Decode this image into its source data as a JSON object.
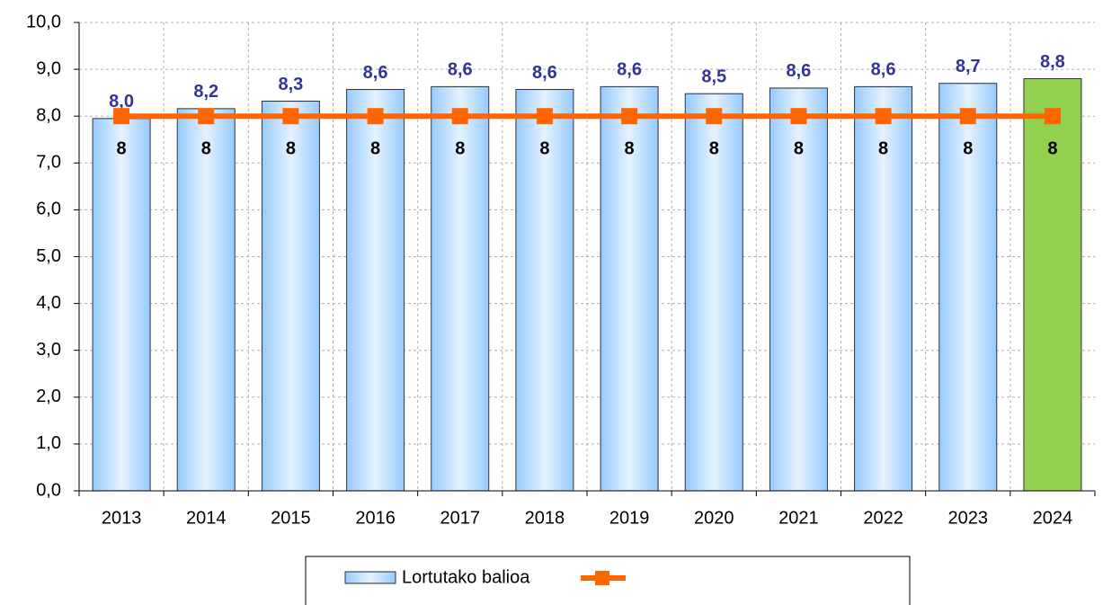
{
  "chart_data": {
    "type": "bar",
    "categories": [
      "2013",
      "2014",
      "2015",
      "2016",
      "2017",
      "2018",
      "2019",
      "2020",
      "2021",
      "2022",
      "2023",
      "2024"
    ],
    "series": [
      {
        "name": "Lortutako balioa",
        "type": "bar",
        "color": "#99ccff",
        "colors": [
          "#99ccff",
          "#99ccff",
          "#99ccff",
          "#99ccff",
          "#99ccff",
          "#99ccff",
          "#99ccff",
          "#99ccff",
          "#99ccff",
          "#99ccff",
          "#99ccff",
          "#92d050"
        ],
        "values": [
          7.95,
          8.16,
          8.32,
          8.57,
          8.63,
          8.57,
          8.63,
          8.48,
          8.6,
          8.63,
          8.7,
          8.8
        ],
        "value_labels": [
          "8,0",
          "8,2",
          "8,3",
          "8,6",
          "8,6",
          "8,6",
          "8,6",
          "8,5",
          "8,6",
          "8,6",
          "8,7",
          "8,8"
        ]
      },
      {
        "type": "line",
        "color": "#ff6600",
        "values": [
          8,
          8,
          8,
          8,
          8,
          8,
          8,
          8,
          8,
          8,
          8,
          8
        ]
      }
    ],
    "ylim": [
      0,
      10
    ],
    "yticks": [
      {
        "value": 0,
        "label": "0,0"
      },
      {
        "value": 1,
        "label": "1,0"
      },
      {
        "value": 2,
        "label": "2,0"
      },
      {
        "value": 3,
        "label": "3,0"
      },
      {
        "value": 4,
        "label": "4,0"
      },
      {
        "value": 5,
        "label": "5,0"
      },
      {
        "value": 6,
        "label": "6,0"
      },
      {
        "value": 7,
        "label": "7,0"
      },
      {
        "value": 8,
        "label": "8,0"
      },
      {
        "value": 9,
        "label": "9,0"
      },
      {
        "value": 10,
        "label": "10,0"
      }
    ],
    "grid": true,
    "legend": "bottom"
  }
}
